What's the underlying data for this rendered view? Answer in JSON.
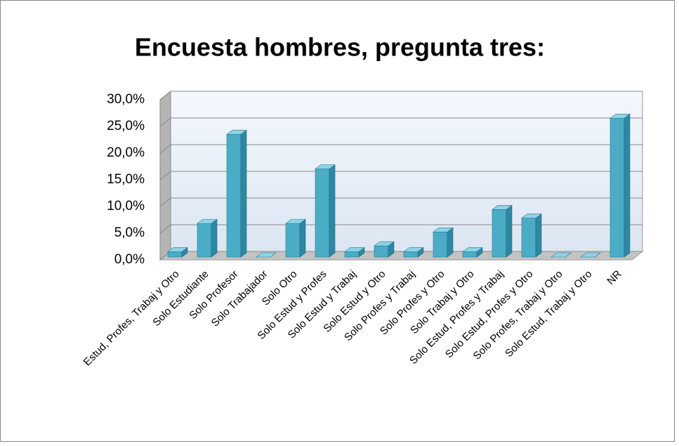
{
  "chart_data": {
    "type": "bar3d",
    "title": "Encuesta hombres, pregunta tres:",
    "categories": [
      "Estud, Profes, Trabaj y Otro",
      "Solo Estudiante",
      "Solo Profesor",
      "Solo Trabajador",
      "Solo Otro",
      "Solo Estud y Profes",
      "Solo Estud y Trabaj",
      "Solo Estud y Otro",
      "Solo Profes y Trabaj",
      "Solo Profes y Otro",
      "Solo Trabaj y Otro",
      "Solo Estud, Profes y Trabaj",
      "Solo Estud, Profes y Otro",
      "Solo Profes, Trabaj y Otro",
      "Solo Estud, Trabaj y Otro",
      "NR"
    ],
    "values": [
      1.0,
      6.3,
      23.0,
      0,
      6.3,
      16.5,
      1.0,
      2.1,
      1.0,
      4.7,
      1.0,
      8.9,
      7.3,
      0,
      0,
      26.0
    ],
    "color": "#4bacc6",
    "ylim": [
      0,
      30
    ],
    "yticks": [
      {
        "value": 0,
        "label": "0,0%"
      },
      {
        "value": 5,
        "label": "5,0%"
      },
      {
        "value": 10,
        "label": "10,0%"
      },
      {
        "value": 15,
        "label": "15,0%"
      },
      {
        "value": 20,
        "label": "20,0%"
      },
      {
        "value": 25,
        "label": "25,0%"
      },
      {
        "value": 30,
        "label": "30,0%"
      }
    ],
    "grid": true
  }
}
